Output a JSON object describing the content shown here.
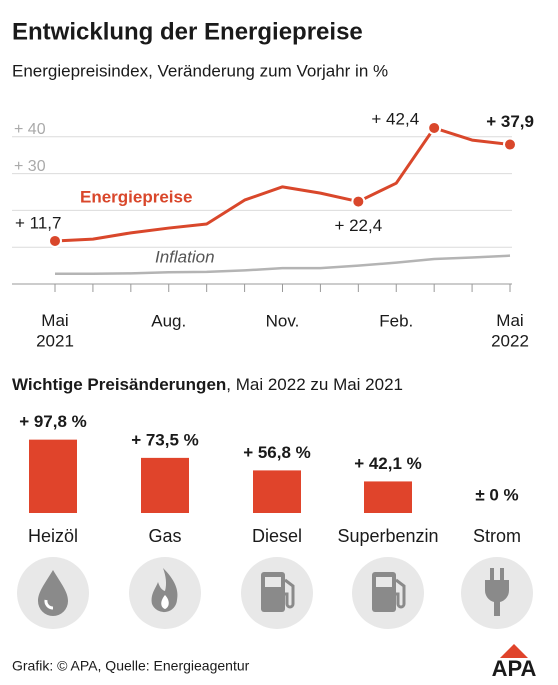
{
  "chart_data": [
    {
      "type": "line",
      "title": "Entwicklung der Energiepreise",
      "subtitle": "Energiepreisindex, Veränderung zum Vorjahr in %",
      "categories": [
        "Mai\n2021",
        null,
        null,
        "Aug.",
        null,
        null,
        "Nov.",
        null,
        null,
        "Feb.",
        null,
        null,
        "Mai\n2022"
      ],
      "series": [
        {
          "name": "Energiepreise",
          "color": "#d9472b",
          "values": [
            11.7,
            12.2,
            13.9,
            15.2,
            16.3,
            22.8,
            26.4,
            24.7,
            22.4,
            27.4,
            42.4,
            39.1,
            37.9
          ],
          "value_labels": [
            "+ 11,7",
            null,
            null,
            null,
            null,
            null,
            null,
            null,
            "+ 22,4",
            null,
            "+ 42,4",
            null,
            "+ 37,9"
          ]
        },
        {
          "name": "Inflation",
          "color": "#b4b4b4",
          "values": [
            2.8,
            2.8,
            2.9,
            3.2,
            3.3,
            3.7,
            4.3,
            4.3,
            5.0,
            5.8,
            6.8,
            7.2,
            7.7
          ]
        }
      ],
      "ylim": [
        0,
        50
      ],
      "yticks": [
        {
          "value": 30,
          "label": "+ 30"
        },
        {
          "value": 40,
          "label": "+ 40"
        }
      ],
      "gridlines": [
        0,
        10,
        20,
        30,
        40
      ],
      "grid": true
    },
    {
      "type": "bar",
      "title": "Wichtige Preisänderungen",
      "subtitle": ", Mai 2022 zu Mai 2021",
      "categories": [
        "Heizöl",
        "Gas",
        "Diesel",
        "Superbenzin",
        "Strom"
      ],
      "values": [
        97.8,
        73.5,
        56.8,
        42.1,
        0
      ],
      "value_labels": [
        "+ 97,8 %",
        "+ 73,5 %",
        "+ 56,8 %",
        "+ 42,1 %",
        "± 0 %"
      ],
      "color": "#e0442b",
      "ylim": [
        0,
        100
      ]
    }
  ],
  "footer": {
    "source": "Grafik: © APA, Quelle: Energieagentur",
    "logo": "APA"
  }
}
